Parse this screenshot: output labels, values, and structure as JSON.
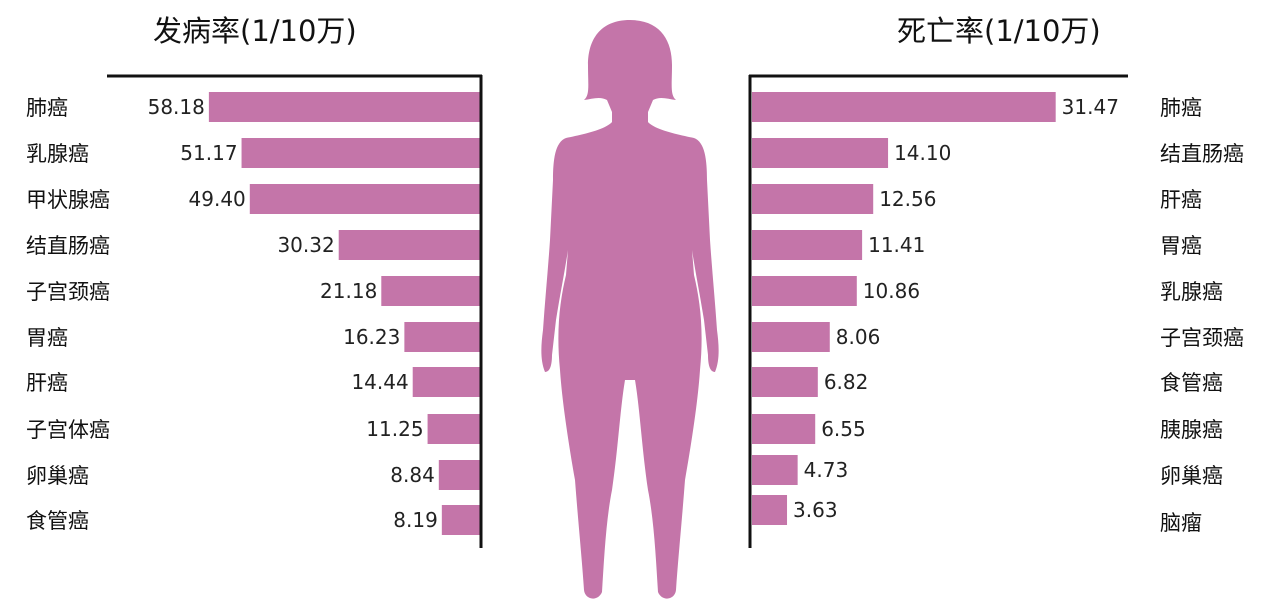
{
  "chart_data": [
    {
      "type": "bar",
      "orientation": "horizontal",
      "title": "发病率(1/10万)",
      "categories": [
        "肺癌",
        "乳腺癌",
        "甲状腺癌",
        "结直肠癌",
        "子宫颈癌",
        "胃癌",
        "肝癌",
        "子宫体癌",
        "卵巢癌",
        "食管癌"
      ],
      "values": [
        58.18,
        51.17,
        49.4,
        30.32,
        21.18,
        16.23,
        14.44,
        11.25,
        8.84,
        8.19
      ],
      "value_labels": [
        "58.18",
        "51.17",
        "49.40",
        "30.32",
        "21.18",
        "16.23",
        "14.44",
        "11.25",
        "8.84",
        "8.19"
      ],
      "direction": "left",
      "color": "#c475a9"
    },
    {
      "type": "bar",
      "orientation": "horizontal",
      "title": "死亡率(1/10万)",
      "categories": [
        "肺癌",
        "结直肠癌",
        "肝癌",
        "胃癌",
        "乳腺癌",
        "子宫颈癌",
        "食管癌",
        "胰腺癌",
        "卵巢癌",
        "脑瘤"
      ],
      "values": [
        31.47,
        14.1,
        12.56,
        11.41,
        10.86,
        8.06,
        6.82,
        6.55,
        4.73,
        3.63
      ],
      "value_labels": [
        "31.47",
        "14.10",
        "12.56",
        "11.41",
        "10.86",
        "8.06",
        "6.82",
        "6.55",
        "4.73",
        "3.63"
      ],
      "direction": "right",
      "color": "#c475a9"
    }
  ],
  "silhouette_color": "#c475a9"
}
